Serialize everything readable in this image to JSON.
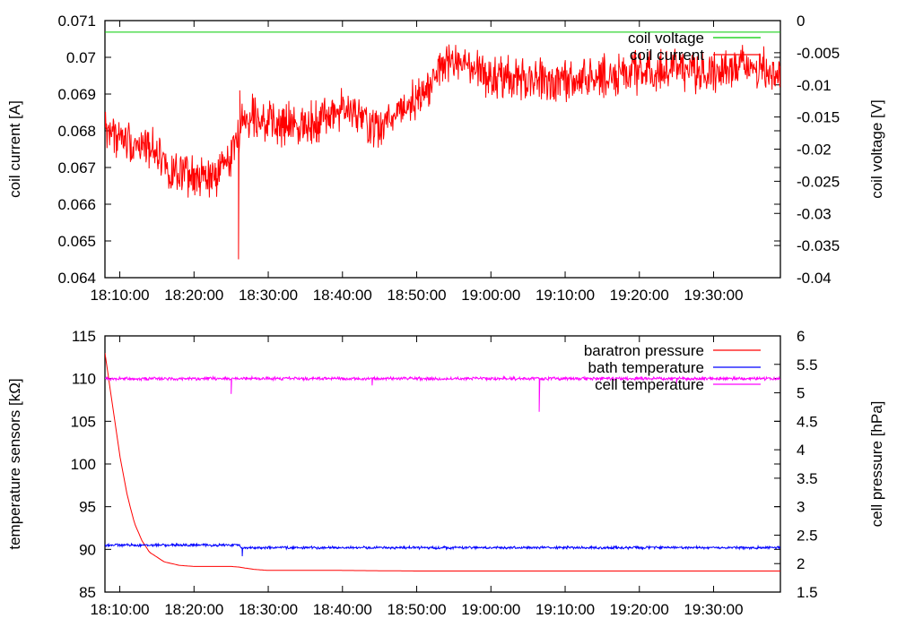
{
  "chart_data": [
    {
      "type": "line",
      "ylabel": "coil current [A]",
      "y2label": "coil voltage [V]",
      "ylim": [
        0.064,
        0.071
      ],
      "y2lim": [
        -0.04,
        0
      ],
      "xrange": [
        "18:08:00",
        "19:39:00"
      ],
      "xticks": [
        "18:10:00",
        "18:20:00",
        "18:30:00",
        "18:40:00",
        "18:50:00",
        "19:00:00",
        "19:10:00",
        "19:20:00",
        "19:30:00"
      ],
      "yticks": [
        "0.064",
        "0.065",
        "0.066",
        "0.067",
        "0.068",
        "0.069",
        "0.07",
        "0.071"
      ],
      "y2ticks": [
        "-0.04",
        "-0.035",
        "-0.03",
        "-0.025",
        "-0.02",
        "-0.015",
        "-0.01",
        "-0.005",
        "0"
      ],
      "legend_position": "top-right",
      "series": [
        {
          "name": "coil voltage",
          "axis": "y2",
          "color": "#00cc00",
          "x": [
            "18:08:00",
            "19:39:00"
          ],
          "values": [
            -0.0018,
            -0.0018
          ]
        },
        {
          "name": "coil current",
          "axis": "y1",
          "color": "#ff0000",
          "noise": 0.00045,
          "spikes": [
            {
              "x": "18:26:00",
              "value": 0.0645
            },
            {
              "x": "18:26:10",
              "value": 0.0691
            }
          ],
          "x": [
            "18:08:00",
            "18:10:00",
            "18:13:00",
            "18:15:00",
            "18:17:00",
            "18:20:00",
            "18:23:00",
            "18:25:00",
            "18:26:30",
            "18:28:00",
            "18:31:00",
            "18:35:00",
            "18:38:00",
            "18:40:00",
            "18:42:00",
            "18:45:00",
            "18:47:00",
            "18:50:00",
            "18:52:00",
            "18:54:00",
            "18:57:00",
            "19:00:00",
            "19:05:00",
            "19:10:00",
            "19:15:00",
            "19:20:00",
            "19:25:00",
            "19:30:00",
            "19:35:00",
            "19:39:00"
          ],
          "values": [
            0.0681,
            0.0678,
            0.0676,
            0.0675,
            0.0668,
            0.0667,
            0.0667,
            0.0674,
            0.0682,
            0.0685,
            0.0681,
            0.0682,
            0.0684,
            0.0686,
            0.0684,
            0.068,
            0.0685,
            0.0689,
            0.0693,
            0.0699,
            0.0697,
            0.0694,
            0.0694,
            0.0693,
            0.0695,
            0.0696,
            0.0697,
            0.0696,
            0.0698,
            0.0695
          ]
        }
      ]
    },
    {
      "type": "line",
      "ylabel": "temperature sensors [kΩ]",
      "y2label": "cell pressure [hPa]",
      "ylim": [
        85,
        115
      ],
      "y2lim": [
        1.5,
        6
      ],
      "xrange": [
        "18:08:00",
        "19:39:00"
      ],
      "xticks": [
        "18:10:00",
        "18:20:00",
        "18:30:00",
        "18:40:00",
        "18:50:00",
        "19:00:00",
        "19:10:00",
        "19:20:00",
        "19:30:00"
      ],
      "yticks": [
        "85",
        "90",
        "95",
        "100",
        "105",
        "110",
        "115"
      ],
      "y2ticks": [
        "1.5",
        "2",
        "2.5",
        "3",
        "3.5",
        "4",
        "4.5",
        "5",
        "5.5",
        "6"
      ],
      "legend_position": "top-right",
      "series": [
        {
          "name": "baratron pressure",
          "axis": "y2",
          "color": "#ff0000",
          "x": [
            "18:08:00",
            "18:09:00",
            "18:10:00",
            "18:11:00",
            "18:12:00",
            "18:13:00",
            "18:14:00",
            "18:16:00",
            "18:18:00",
            "18:20:00",
            "18:25:00",
            "18:26:00",
            "18:28:00",
            "18:30:00",
            "18:40:00",
            "18:50:00",
            "19:00:00",
            "19:10:00",
            "19:20:00",
            "19:30:00",
            "19:39:00"
          ],
          "values": [
            5.7,
            4.8,
            3.9,
            3.2,
            2.7,
            2.4,
            2.2,
            2.03,
            1.97,
            1.95,
            1.95,
            1.94,
            1.9,
            1.88,
            1.88,
            1.87,
            1.87,
            1.87,
            1.87,
            1.87,
            1.87
          ]
        },
        {
          "name": "bath temperature",
          "axis": "y1",
          "color": "#0000ff",
          "noise": 0.12,
          "spikes": [
            {
              "x": "18:26:30",
              "value": 89.2
            }
          ],
          "x": [
            "18:08:00",
            "18:26:00",
            "18:26:30",
            "19:39:00"
          ],
          "values": [
            90.5,
            90.5,
            90.2,
            90.2
          ]
        },
        {
          "name": "cell temperature",
          "axis": "y1",
          "color": "#ff00ff",
          "noise": 0.15,
          "spikes": [
            {
              "x": "18:25:00",
              "value": 108.2
            },
            {
              "x": "19:06:30",
              "value": 106.1
            },
            {
              "x": "18:44:00",
              "value": 109.2
            },
            {
              "x": "19:25:00",
              "value": 109.4
            }
          ],
          "x": [
            "18:08:00",
            "19:39:00"
          ],
          "values": [
            110,
            110
          ]
        }
      ]
    }
  ]
}
